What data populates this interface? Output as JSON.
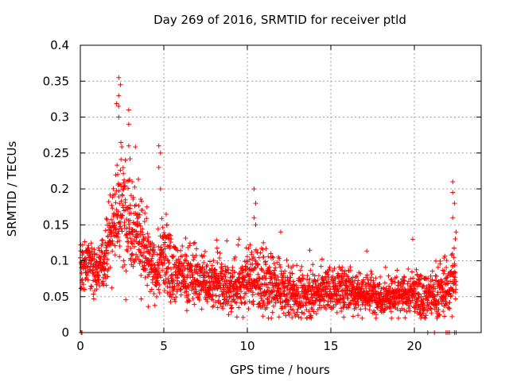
{
  "chart_data": {
    "type": "scatter",
    "title": "Day 269 of 2016, SRMTID for receiver ptld",
    "xlabel": "GPS time / hours",
    "ylabel": "SRMTID / TECUs",
    "xlim": [
      0,
      24
    ],
    "ylim": [
      0,
      0.4
    ],
    "x_ticks": [
      0,
      5,
      10,
      15,
      20
    ],
    "x_tick_labels": [
      "0",
      "5",
      "10",
      "15",
      "20"
    ],
    "y_ticks": [
      0,
      0.05,
      0.1,
      0.15,
      0.2,
      0.25,
      0.3,
      0.35,
      0.4
    ],
    "y_tick_labels": [
      "0",
      "0.05",
      "0.1",
      "0.15",
      "0.2",
      "0.25",
      "0.3",
      "0.35",
      "0.4"
    ],
    "grid": true,
    "marker": "+",
    "color": "#ff0000",
    "profile": {
      "description": "approximate trend and spread of the plotted points",
      "x": [
        0,
        0.5,
        1,
        1.5,
        2,
        2.5,
        3,
        3.5,
        4,
        4.5,
        5,
        5.5,
        6,
        7,
        8,
        9,
        10,
        10.5,
        11,
        12,
        13,
        14,
        15,
        16,
        17,
        18,
        19,
        20,
        21,
        22,
        22.5
      ],
      "center": [
        0.09,
        0.095,
        0.09,
        0.11,
        0.16,
        0.17,
        0.16,
        0.14,
        0.1,
        0.08,
        0.11,
        0.09,
        0.08,
        0.075,
        0.07,
        0.06,
        0.075,
        0.08,
        0.065,
        0.06,
        0.05,
        0.055,
        0.06,
        0.06,
        0.055,
        0.05,
        0.05,
        0.055,
        0.05,
        0.06,
        0.08
      ],
      "spread": [
        0.03,
        0.03,
        0.03,
        0.04,
        0.06,
        0.07,
        0.06,
        0.05,
        0.04,
        0.03,
        0.05,
        0.035,
        0.03,
        0.03,
        0.03,
        0.03,
        0.035,
        0.04,
        0.035,
        0.03,
        0.025,
        0.025,
        0.025,
        0.025,
        0.025,
        0.02,
        0.02,
        0.025,
        0.025,
        0.03,
        0.04
      ]
    },
    "peaks": [
      {
        "x": 2.3,
        "y": 0.355
      },
      {
        "x": 2.4,
        "y": 0.345
      },
      {
        "x": 2.3,
        "y": 0.33
      },
      {
        "x": 2.3,
        "y": 0.315
      },
      {
        "x": 2.3,
        "y": 0.3
      },
      {
        "x": 2.9,
        "y": 0.31
      },
      {
        "x": 2.9,
        "y": 0.29
      },
      {
        "x": 2.9,
        "y": 0.26
      },
      {
        "x": 2.7,
        "y": 0.24
      },
      {
        "x": 3.1,
        "y": 0.21
      },
      {
        "x": 4.7,
        "y": 0.26
      },
      {
        "x": 4.8,
        "y": 0.25
      },
      {
        "x": 4.7,
        "y": 0.23
      },
      {
        "x": 4.8,
        "y": 0.2
      },
      {
        "x": 10.4,
        "y": 0.2
      },
      {
        "x": 10.5,
        "y": 0.18
      },
      {
        "x": 10.4,
        "y": 0.16
      },
      {
        "x": 10.5,
        "y": 0.15
      },
      {
        "x": 22.3,
        "y": 0.21
      },
      {
        "x": 22.3,
        "y": 0.195
      },
      {
        "x": 22.4,
        "y": 0.18
      },
      {
        "x": 22.3,
        "y": 0.16
      },
      {
        "x": 22.5,
        "y": 0.14
      },
      {
        "x": 19.9,
        "y": 0.13
      },
      {
        "x": 12.0,
        "y": 0.14
      },
      {
        "x": 9.5,
        "y": 0.13
      }
    ],
    "zero_points": [
      0.05,
      0.1,
      20.8,
      21.2,
      21.9,
      22.0,
      22.1,
      22.4,
      22.5
    ],
    "point_count": 2600
  }
}
